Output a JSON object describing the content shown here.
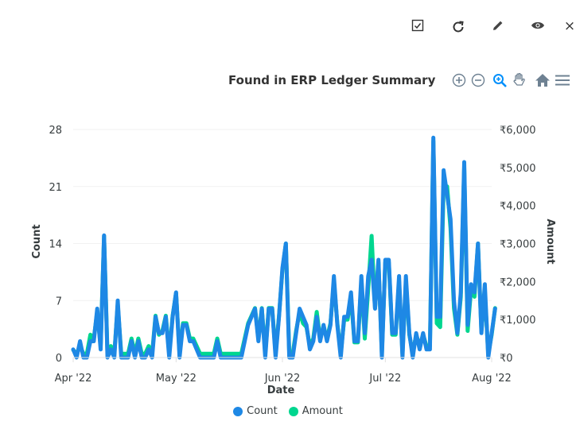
{
  "toolbar": {
    "icons": [
      "checkbox-icon",
      "refresh-icon",
      "pencil-icon",
      "eye-icon",
      "close-icon"
    ],
    "close_label": "×"
  },
  "chart_controls": [
    "zoom-in-icon",
    "zoom-out-icon",
    "zoom-selection-icon",
    "pan-icon",
    "home-icon",
    "menu-icon"
  ],
  "chart_data": {
    "type": "line",
    "title": "Found in ERP Ledger Summary",
    "xlabel": "Date",
    "ylabel_left": "Count",
    "ylabel_right": "Amount",
    "x_ticks": [
      "Apr '22",
      "May '22",
      "Jun '22",
      "Jul '22",
      "Aug '22"
    ],
    "y_left_ticks": [
      "0",
      "7",
      "14",
      "21",
      "28"
    ],
    "y_left_range": [
      0,
      28
    ],
    "y_right_ticks": [
      "₹0",
      "₹1,000",
      "₹2,000",
      "₹3,000",
      "₹4,000",
      "₹5,000",
      "₹6,000"
    ],
    "y_right_range": [
      0,
      6000
    ],
    "x_start": "2022-04-01",
    "x_end": "2022-08-01",
    "grid": true,
    "legend": "bottom",
    "series": [
      {
        "name": "Count",
        "color": "#1e88e5",
        "axis": "left",
        "values": [
          1,
          0,
          2,
          0,
          0,
          2,
          2,
          6,
          1,
          15,
          0,
          1,
          0,
          7,
          0,
          0,
          0,
          2,
          0,
          2,
          0,
          0,
          1,
          0,
          5,
          3,
          3,
          5,
          0,
          5,
          8,
          0,
          4,
          4,
          2,
          2,
          1,
          0,
          0,
          0,
          0,
          0,
          2,
          0,
          0,
          0,
          0,
          0,
          0,
          0,
          2,
          4,
          5,
          6,
          2,
          6,
          0,
          6,
          6,
          0,
          5,
          11,
          14,
          0,
          0,
          3,
          6,
          5,
          4,
          1,
          2,
          5,
          2,
          4,
          2,
          4,
          10,
          4,
          0,
          5,
          5,
          8,
          2,
          2,
          10,
          3,
          10,
          12,
          6,
          12,
          0,
          12,
          12,
          3,
          3,
          10,
          0,
          10,
          3,
          0,
          3,
          1,
          3,
          1,
          1,
          27,
          5,
          5,
          23,
          20,
          17,
          7,
          3,
          8,
          24,
          4,
          9,
          8,
          14,
          3,
          9,
          0,
          3,
          6
        ],
        "x_step_days": 1
      },
      {
        "name": "Amount",
        "color": "#00d68f",
        "axis": "right",
        "values": [
          200,
          100,
          300,
          100,
          100,
          600,
          500,
          1200,
          300,
          3200,
          100,
          300,
          100,
          1400,
          100,
          100,
          100,
          500,
          100,
          500,
          100,
          100,
          300,
          100,
          1100,
          600,
          700,
          1100,
          100,
          1100,
          1700,
          100,
          900,
          900,
          500,
          500,
          300,
          100,
          100,
          100,
          100,
          100,
          500,
          100,
          100,
          100,
          100,
          100,
          100,
          100,
          500,
          900,
          1100,
          1300,
          500,
          1300,
          100,
          1300,
          1300,
          100,
          1100,
          2300,
          3000,
          100,
          100,
          700,
          1200,
          900,
          800,
          300,
          500,
          1200,
          500,
          800,
          500,
          900,
          2000,
          900,
          100,
          1000,
          1000,
          1600,
          400,
          400,
          2000,
          500,
          1800,
          3200,
          1300,
          2500,
          100,
          2500,
          2500,
          600,
          600,
          2000,
          100,
          2000,
          600,
          100,
          600,
          300,
          600,
          300,
          300,
          5700,
          900,
          800,
          4500,
          4500,
          3400,
          1300,
          600,
          1600,
          5000,
          700,
          1800,
          1600,
          3000,
          700,
          1700,
          100,
          600,
          1300
        ],
        "x_step_days": 1
      }
    ]
  }
}
